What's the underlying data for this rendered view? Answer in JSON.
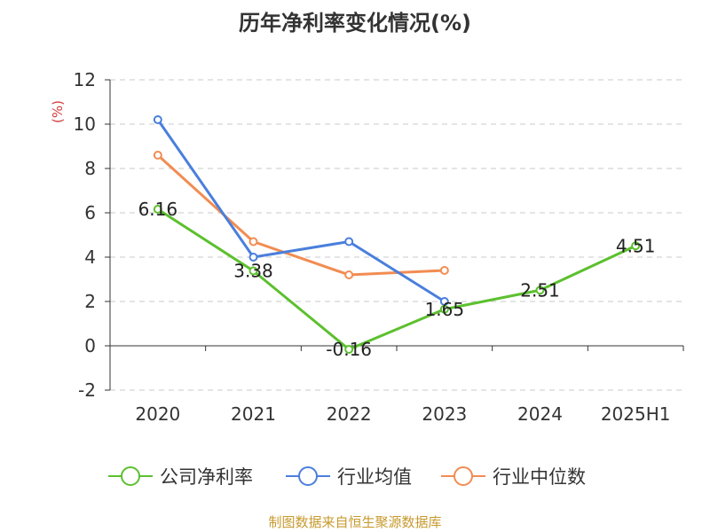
{
  "title": "历年净利率变化情况(%)",
  "source_note": "制图数据来自恒生聚源数据库",
  "chart_data": {
    "type": "line",
    "title": "历年净利率变化情况(%)",
    "ylabel": "(%)",
    "xlabel": "",
    "categories": [
      "2020",
      "2021",
      "2022",
      "2023",
      "2024",
      "2025H1"
    ],
    "ylim": [
      -2,
      12
    ],
    "yticks": [
      -2,
      0,
      2,
      4,
      6,
      8,
      10,
      12
    ],
    "grid": true,
    "legend_position": "bottom",
    "series": [
      {
        "name": "公司净利率",
        "color": "#5cc02e",
        "values": [
          6.16,
          3.38,
          -0.16,
          1.65,
          2.51,
          4.51
        ],
        "labels": true
      },
      {
        "name": "行业均值",
        "color": "#4a7fdc",
        "values": [
          10.2,
          4.0,
          4.7,
          2.0,
          null,
          null
        ],
        "labels": false
      },
      {
        "name": "行业中位数",
        "color": "#f28c52",
        "values": [
          8.6,
          4.7,
          3.2,
          3.4,
          null,
          null
        ],
        "labels": false
      }
    ]
  }
}
